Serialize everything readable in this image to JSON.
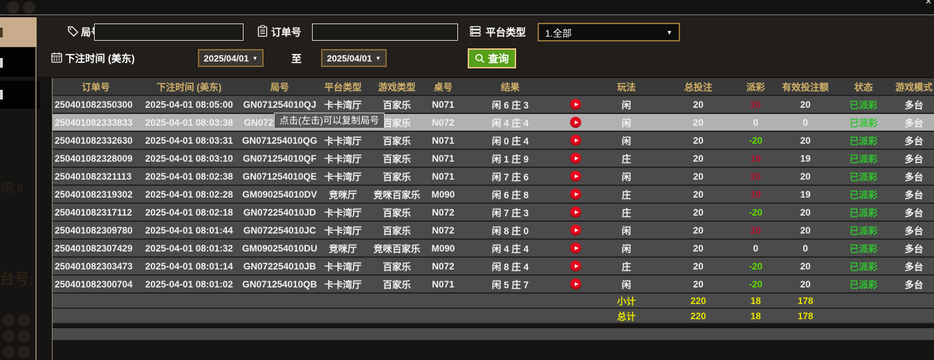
{
  "window": {
    "close_glyph": "✕"
  },
  "filters": {
    "round_label": "局号",
    "round_value": "",
    "order_label": "订单号",
    "order_value": "",
    "platform_label": "平台类型",
    "platform_value": "1.全部",
    "dropdown_arrow": "▼",
    "bet_time_label": "下注时间 (美东)",
    "date_from": "2025/04/01",
    "to_label": "至",
    "date_to": "2025/04/01",
    "query_label": "查询"
  },
  "tooltip": {
    "text": "点击(左击)可以复制局号"
  },
  "table": {
    "headers": [
      "订单号",
      "下注时间 (美东)",
      "局号",
      "平台类型",
      "游戏类型",
      "桌号",
      "结果",
      "",
      "玩法",
      "总投注",
      "派彩",
      "有效投注额",
      "状态",
      "游戏模式"
    ],
    "rows": [
      {
        "order_no": "250401082350300",
        "bet_time": "2025-04-01 08:05:00",
        "round_no": "GN071254010QJ",
        "platform": "卡卡湾厅",
        "game_type": "百家乐",
        "table_no": "N071",
        "result": "闲 6 庄 3",
        "play_type": "闲",
        "total_bet": "20",
        "payout": "20",
        "payout_color": "red",
        "valid_bet": "20",
        "status": "已派彩",
        "mode": "多台",
        "highlight": false
      },
      {
        "order_no": "250401082333833",
        "bet_time": "2025-04-01 08:03:38",
        "round_no": "GN072254010JF",
        "platform": "卡卡湾厅",
        "game_type": "百家乐",
        "table_no": "N072",
        "result": "闲 4 庄 4",
        "play_type": "闲",
        "total_bet": "20",
        "payout": "0",
        "payout_color": "white",
        "valid_bet": "0",
        "status": "已派彩",
        "mode": "多台",
        "highlight": true
      },
      {
        "order_no": "250401082332630",
        "bet_time": "2025-04-01 08:03:31",
        "round_no": "GN071254010QG",
        "platform": "卡卡湾厅",
        "game_type": "百家乐",
        "table_no": "N071",
        "result": "闲 0 庄 4",
        "play_type": "闲",
        "total_bet": "20",
        "payout": "-20",
        "payout_color": "green",
        "valid_bet": "20",
        "status": "已派彩",
        "mode": "多台",
        "highlight": false
      },
      {
        "order_no": "250401082328009",
        "bet_time": "2025-04-01 08:03:10",
        "round_no": "GN071254010QF",
        "platform": "卡卡湾厅",
        "game_type": "百家乐",
        "table_no": "N071",
        "result": "闲 1 庄 9",
        "play_type": "庄",
        "total_bet": "20",
        "payout": "19",
        "payout_color": "red",
        "valid_bet": "19",
        "status": "已派彩",
        "mode": "多台",
        "highlight": false
      },
      {
        "order_no": "250401082321113",
        "bet_time": "2025-04-01 08:02:38",
        "round_no": "GN071254010QE",
        "platform": "卡卡湾厅",
        "game_type": "百家乐",
        "table_no": "N071",
        "result": "闲 7 庄 6",
        "play_type": "闲",
        "total_bet": "20",
        "payout": "20",
        "payout_color": "red",
        "valid_bet": "20",
        "status": "已派彩",
        "mode": "多台",
        "highlight": false
      },
      {
        "order_no": "250401082319302",
        "bet_time": "2025-04-01 08:02:28",
        "round_no": "GM090254010DV",
        "platform": "竞咪厅",
        "game_type": "竞咪百家乐",
        "table_no": "M090",
        "result": "闲 6 庄 8",
        "play_type": "庄",
        "total_bet": "20",
        "payout": "19",
        "payout_color": "red",
        "valid_bet": "19",
        "status": "已派彩",
        "mode": "多台",
        "highlight": false
      },
      {
        "order_no": "250401082317112",
        "bet_time": "2025-04-01 08:02:18",
        "round_no": "GN072254010JD",
        "platform": "卡卡湾厅",
        "game_type": "百家乐",
        "table_no": "N072",
        "result": "闲 7 庄 3",
        "play_type": "庄",
        "total_bet": "20",
        "payout": "-20",
        "payout_color": "green",
        "valid_bet": "20",
        "status": "已派彩",
        "mode": "多台",
        "highlight": false
      },
      {
        "order_no": "250401082309780",
        "bet_time": "2025-04-01 08:01:44",
        "round_no": "GN072254010JC",
        "platform": "卡卡湾厅",
        "game_type": "百家乐",
        "table_no": "N072",
        "result": "闲 8 庄 0",
        "play_type": "闲",
        "total_bet": "20",
        "payout": "20",
        "payout_color": "red",
        "valid_bet": "20",
        "status": "已派彩",
        "mode": "多台",
        "highlight": false
      },
      {
        "order_no": "250401082307429",
        "bet_time": "2025-04-01 08:01:32",
        "round_no": "GM090254010DU",
        "platform": "竞咪厅",
        "game_type": "竞咪百家乐",
        "table_no": "M090",
        "result": "闲 4 庄 4",
        "play_type": "闲",
        "total_bet": "20",
        "payout": "0",
        "payout_color": "white",
        "valid_bet": "0",
        "status": "已派彩",
        "mode": "多台",
        "highlight": false
      },
      {
        "order_no": "250401082303473",
        "bet_time": "2025-04-01 08:01:14",
        "round_no": "GN072254010JB",
        "platform": "卡卡湾厅",
        "game_type": "百家乐",
        "table_no": "N072",
        "result": "闲 8 庄 4",
        "play_type": "庄",
        "total_bet": "20",
        "payout": "-20",
        "payout_color": "green",
        "valid_bet": "20",
        "status": "已派彩",
        "mode": "多台",
        "highlight": false
      },
      {
        "order_no": "250401082300704",
        "bet_time": "2025-04-01 08:01:02",
        "round_no": "GN071254010QB",
        "platform": "卡卡湾厅",
        "game_type": "百家乐",
        "table_no": "N071",
        "result": "闲 5 庄 7",
        "play_type": "闲",
        "total_bet": "20",
        "payout": "-20",
        "payout_color": "green",
        "valid_bet": "20",
        "status": "已派彩",
        "mode": "多台",
        "highlight": false
      }
    ],
    "subtotal": {
      "label": "小计",
      "total_bet": "220",
      "payout": "18",
      "valid_bet": "178"
    },
    "total": {
      "label": "总计",
      "total_bet": "220",
      "payout": "18",
      "valid_bet": "178"
    }
  },
  "background_bleed": {
    "text1": "闲 5",
    "text2": "台号:"
  },
  "colors": {
    "header_gold": "#d4b269",
    "row_bg": "#4b4b4b",
    "highlight_row_bg": "#b1b1b1",
    "payout_positive_red": "#b11230",
    "payout_negative_green": "#5cdb00",
    "status_green": "#2fc52f",
    "summary_yellow": "#e6e300",
    "sidebar_tan": "#c9ac8b",
    "query_green": "#57a01a",
    "accent_border_orange": "#8d6b33",
    "play_button_red": "#e60b1e"
  },
  "icons": {
    "round": "tag-icon",
    "order": "clipboard-icon",
    "platform": "server-stack-icon",
    "bet_time": "calendar-icon",
    "query": "search-icon",
    "play": "play-icon",
    "close": "close-icon",
    "dropdown": "chevron-down-icon"
  }
}
